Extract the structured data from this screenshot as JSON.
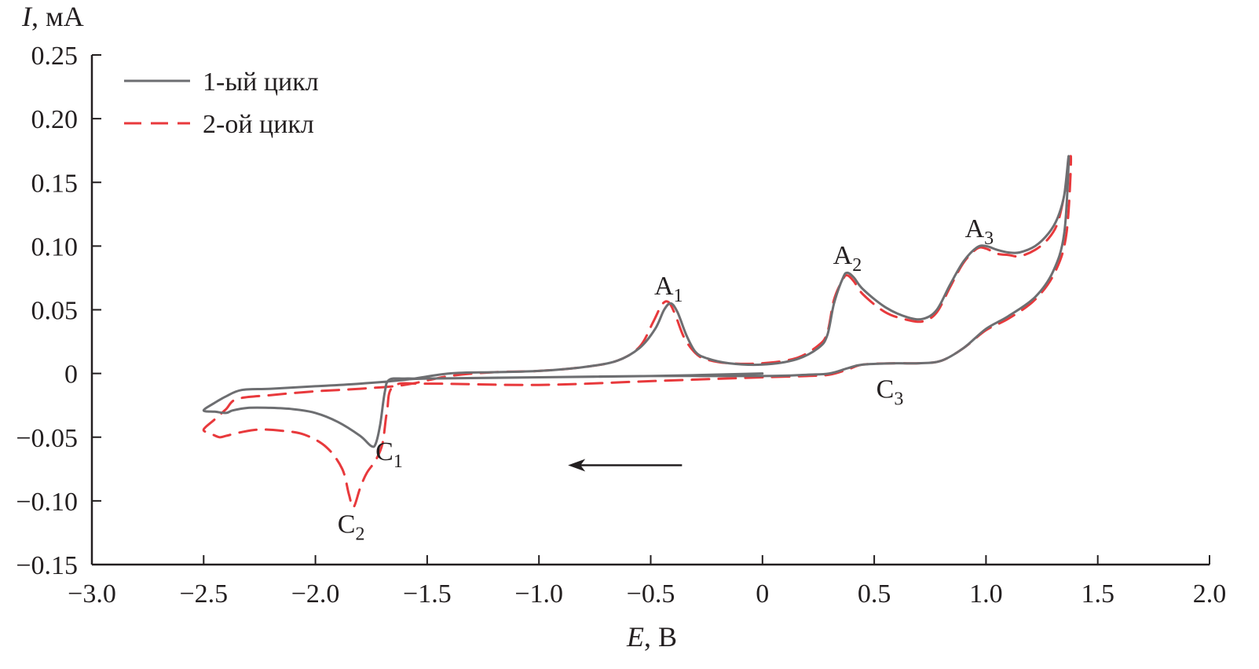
{
  "chart_data": {
    "type": "line",
    "title": "",
    "xlabel": {
      "var": "E",
      "unit": ", В"
    },
    "ylabel": {
      "var": "I",
      "unit": ", мА"
    },
    "xlim": [
      -3.0,
      2.0
    ],
    "ylim": [
      -0.15,
      0.25
    ],
    "x_ticks": [
      -3.0,
      -2.5,
      -2.0,
      -1.5,
      -1.0,
      -0.5,
      0,
      0.5,
      1.0,
      1.5,
      2.0
    ],
    "x_tick_labels": [
      "−3.0",
      "−2.5",
      "−2.0",
      "−1.5",
      "−1.0",
      "−0.5",
      "0",
      "0.5",
      "1.0",
      "1.5",
      "2.0"
    ],
    "y_ticks": [
      -0.15,
      -0.1,
      -0.05,
      0,
      0.05,
      0.1,
      0.15,
      0.2,
      0.25
    ],
    "y_tick_labels": [
      "−0.15",
      "−0.10",
      "−0.05",
      "0",
      "0.05",
      "0.10",
      "0.15",
      "0.20",
      "0.25"
    ],
    "grid": false,
    "legend_position": "top-left",
    "series": [
      {
        "name": "1-ый цикл",
        "color": "#6d6e71",
        "style": "solid",
        "points": [
          [
            0.0,
            0.0
          ],
          [
            -0.5,
            -0.002
          ],
          [
            -1.0,
            -0.003
          ],
          [
            -1.5,
            -0.004
          ],
          [
            -1.6,
            -0.004
          ],
          [
            -1.67,
            -0.005
          ],
          [
            -1.69,
            -0.015
          ],
          [
            -1.71,
            -0.04
          ],
          [
            -1.73,
            -0.055
          ],
          [
            -1.75,
            -0.057
          ],
          [
            -1.8,
            -0.049
          ],
          [
            -1.9,
            -0.038
          ],
          [
            -2.0,
            -0.031
          ],
          [
            -2.1,
            -0.028
          ],
          [
            -2.2,
            -0.027
          ],
          [
            -2.3,
            -0.027
          ],
          [
            -2.37,
            -0.029
          ],
          [
            -2.4,
            -0.031
          ],
          [
            -2.45,
            -0.03
          ],
          [
            -2.5,
            -0.029
          ],
          [
            -2.45,
            -0.023
          ],
          [
            -2.4,
            -0.018
          ],
          [
            -2.33,
            -0.013
          ],
          [
            -2.2,
            -0.012
          ],
          [
            -2.0,
            -0.01
          ],
          [
            -1.8,
            -0.008
          ],
          [
            -1.6,
            -0.005
          ],
          [
            -1.4,
            0.0
          ],
          [
            -1.2,
            0.001
          ],
          [
            -1.0,
            0.002
          ],
          [
            -0.8,
            0.005
          ],
          [
            -0.65,
            0.01
          ],
          [
            -0.55,
            0.02
          ],
          [
            -0.48,
            0.035
          ],
          [
            -0.44,
            0.05
          ],
          [
            -0.41,
            0.055
          ],
          [
            -0.38,
            0.048
          ],
          [
            -0.34,
            0.03
          ],
          [
            -0.3,
            0.017
          ],
          [
            -0.25,
            0.012
          ],
          [
            -0.15,
            0.008
          ],
          [
            0.0,
            0.007
          ],
          [
            0.15,
            0.011
          ],
          [
            0.25,
            0.02
          ],
          [
            0.29,
            0.03
          ],
          [
            0.32,
            0.055
          ],
          [
            0.36,
            0.075
          ],
          [
            0.38,
            0.079
          ],
          [
            0.41,
            0.075
          ],
          [
            0.45,
            0.066
          ],
          [
            0.55,
            0.052
          ],
          [
            0.65,
            0.044
          ],
          [
            0.72,
            0.043
          ],
          [
            0.78,
            0.05
          ],
          [
            0.84,
            0.07
          ],
          [
            0.9,
            0.088
          ],
          [
            0.96,
            0.099
          ],
          [
            1.0,
            0.1
          ],
          [
            1.05,
            0.097
          ],
          [
            1.1,
            0.095
          ],
          [
            1.15,
            0.095
          ],
          [
            1.22,
            0.1
          ],
          [
            1.28,
            0.11
          ],
          [
            1.32,
            0.122
          ],
          [
            1.35,
            0.14
          ],
          [
            1.37,
            0.17
          ],
          [
            1.35,
            0.11
          ],
          [
            1.3,
            0.08
          ],
          [
            1.22,
            0.06
          ],
          [
            1.1,
            0.045
          ],
          [
            1.0,
            0.035
          ],
          [
            0.9,
            0.02
          ],
          [
            0.8,
            0.01
          ],
          [
            0.7,
            0.008
          ],
          [
            0.6,
            0.008
          ],
          [
            0.45,
            0.007
          ],
          [
            0.38,
            0.004
          ],
          [
            0.3,
            0.0
          ],
          [
            0.2,
            -0.001
          ],
          [
            0.0,
            -0.002
          ],
          [
            -0.5,
            -0.002
          ],
          [
            -1.0,
            -0.003
          ],
          [
            -1.5,
            -0.004
          ],
          [
            -1.62,
            -0.005
          ]
        ]
      },
      {
        "name": "2-ой цикл",
        "color": "#e8393c",
        "style": "dashed",
        "points": [
          [
            0.0,
            -0.003
          ],
          [
            -0.5,
            -0.006
          ],
          [
            -1.0,
            -0.009
          ],
          [
            -1.5,
            -0.008
          ],
          [
            -1.65,
            -0.01
          ],
          [
            -1.68,
            -0.03
          ],
          [
            -1.7,
            -0.055
          ],
          [
            -1.73,
            -0.068
          ],
          [
            -1.77,
            -0.078
          ],
          [
            -1.8,
            -0.09
          ],
          [
            -1.83,
            -0.105
          ],
          [
            -1.85,
            -0.095
          ],
          [
            -1.88,
            -0.075
          ],
          [
            -1.95,
            -0.058
          ],
          [
            -2.05,
            -0.048
          ],
          [
            -2.15,
            -0.045
          ],
          [
            -2.25,
            -0.044
          ],
          [
            -2.33,
            -0.046
          ],
          [
            -2.4,
            -0.049
          ],
          [
            -2.43,
            -0.05
          ],
          [
            -2.47,
            -0.047
          ],
          [
            -2.5,
            -0.044
          ],
          [
            -2.45,
            -0.036
          ],
          [
            -2.4,
            -0.028
          ],
          [
            -2.35,
            -0.02
          ],
          [
            -2.2,
            -0.017
          ],
          [
            -2.0,
            -0.014
          ],
          [
            -1.8,
            -0.012
          ],
          [
            -1.6,
            -0.009
          ],
          [
            -1.4,
            -0.002
          ],
          [
            -1.2,
            0.001
          ],
          [
            -1.0,
            0.002
          ],
          [
            -0.8,
            0.005
          ],
          [
            -0.65,
            0.01
          ],
          [
            -0.55,
            0.021
          ],
          [
            -0.49,
            0.04
          ],
          [
            -0.45,
            0.054
          ],
          [
            -0.42,
            0.056
          ],
          [
            -0.39,
            0.046
          ],
          [
            -0.35,
            0.028
          ],
          [
            -0.3,
            0.016
          ],
          [
            -0.25,
            0.011
          ],
          [
            -0.15,
            0.008
          ],
          [
            0.0,
            0.008
          ],
          [
            0.15,
            0.012
          ],
          [
            0.25,
            0.022
          ],
          [
            0.29,
            0.032
          ],
          [
            0.32,
            0.058
          ],
          [
            0.36,
            0.074
          ],
          [
            0.38,
            0.077
          ],
          [
            0.41,
            0.072
          ],
          [
            0.45,
            0.062
          ],
          [
            0.55,
            0.048
          ],
          [
            0.65,
            0.042
          ],
          [
            0.72,
            0.041
          ],
          [
            0.78,
            0.048
          ],
          [
            0.84,
            0.068
          ],
          [
            0.9,
            0.087
          ],
          [
            0.96,
            0.098
          ],
          [
            1.0,
            0.098
          ],
          [
            1.05,
            0.094
          ],
          [
            1.1,
            0.093
          ],
          [
            1.15,
            0.092
          ],
          [
            1.22,
            0.097
          ],
          [
            1.28,
            0.106
          ],
          [
            1.32,
            0.118
          ],
          [
            1.35,
            0.14
          ],
          [
            1.38,
            0.17
          ],
          [
            1.36,
            0.11
          ],
          [
            1.31,
            0.08
          ],
          [
            1.22,
            0.058
          ],
          [
            1.1,
            0.043
          ],
          [
            1.0,
            0.034
          ],
          [
            0.9,
            0.02
          ],
          [
            0.8,
            0.01
          ],
          [
            0.7,
            0.008
          ],
          [
            0.6,
            0.008
          ],
          [
            0.45,
            0.007
          ],
          [
            0.38,
            0.003
          ],
          [
            0.3,
            -0.001
          ],
          [
            0.2,
            -0.002
          ],
          [
            0.0,
            -0.003
          ]
        ]
      }
    ],
    "annotations": [
      {
        "base": "A",
        "sub": "1",
        "x": -0.42,
        "y": 0.062
      },
      {
        "base": "A",
        "sub": "2",
        "x": 0.38,
        "y": 0.086
      },
      {
        "base": "A",
        "sub": "3",
        "x": 0.97,
        "y": 0.107
      },
      {
        "base": "C",
        "sub": "1",
        "x": -1.67,
        "y": -0.068
      },
      {
        "base": "C",
        "sub": "2",
        "x": -1.84,
        "y": -0.125
      },
      {
        "base": "C",
        "sub": "3",
        "x": 0.57,
        "y": -0.019
      }
    ],
    "arrow": {
      "from": [
        -0.36,
        -0.072
      ],
      "to": [
        -0.87,
        -0.072
      ],
      "direction": "left"
    }
  }
}
